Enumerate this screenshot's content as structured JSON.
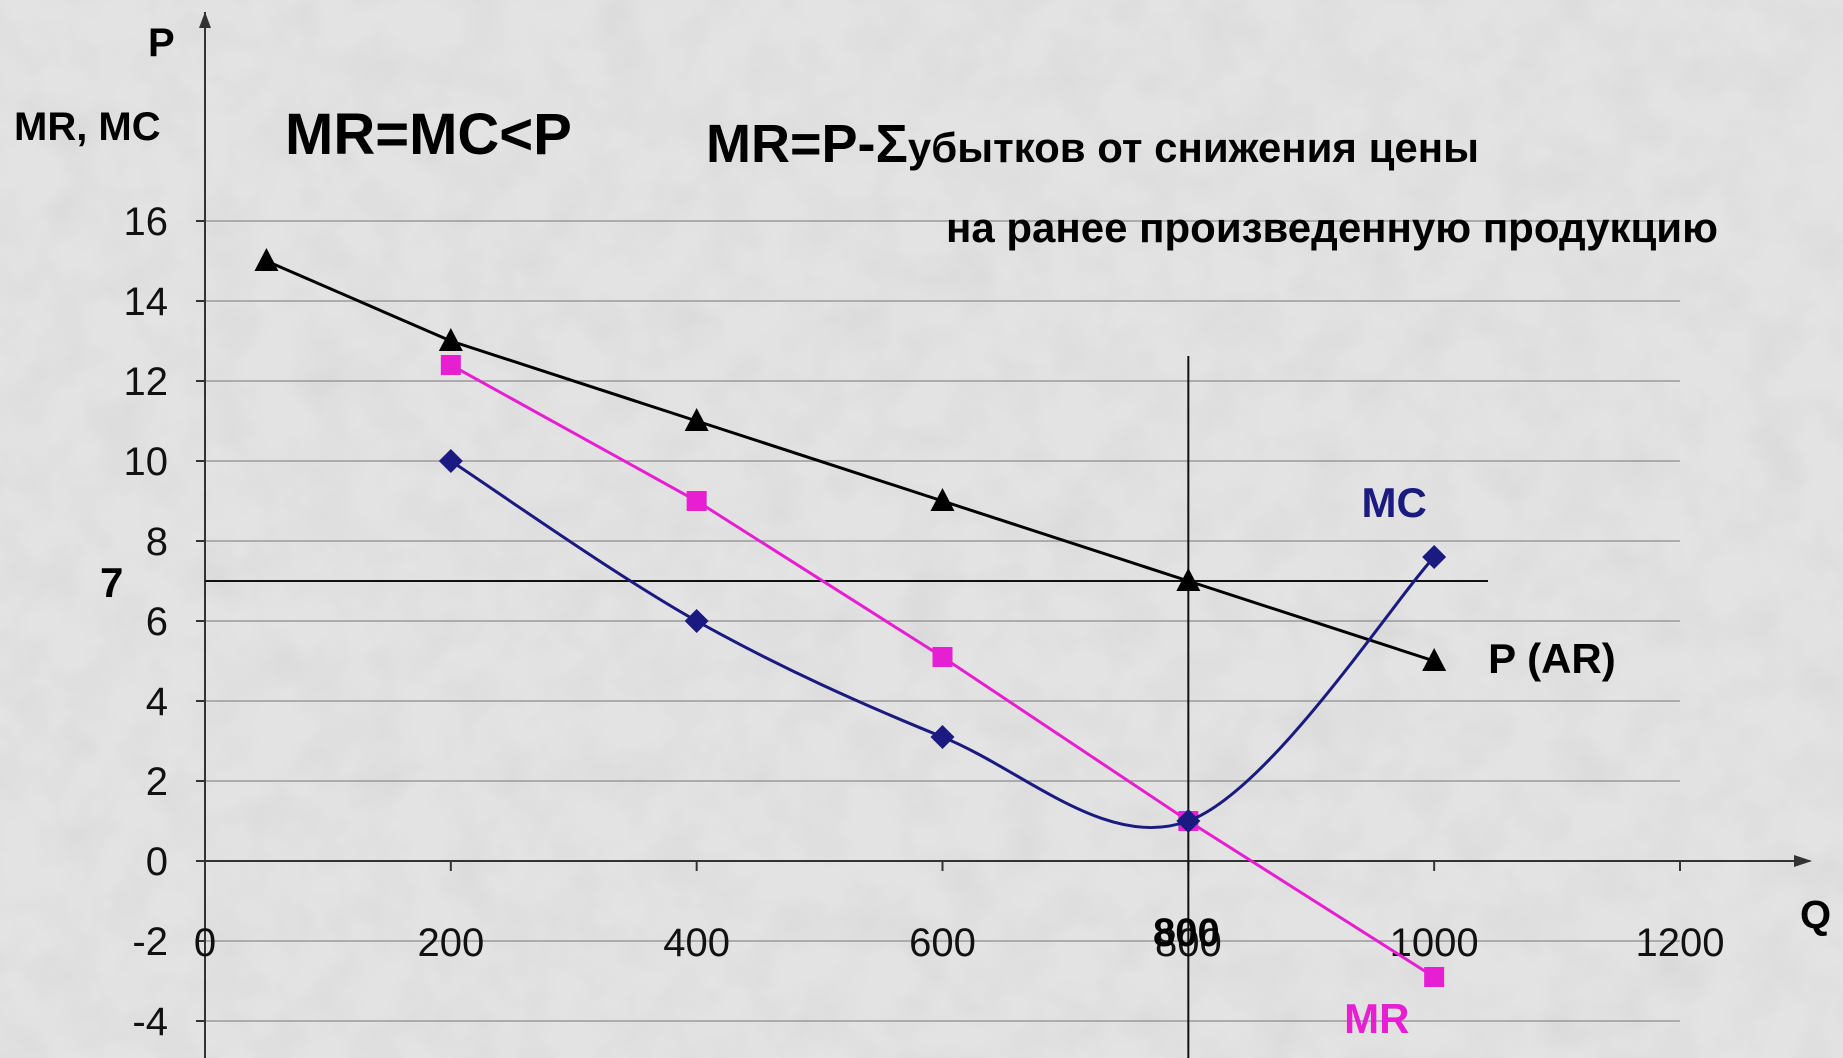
{
  "chart_data": {
    "type": "line",
    "ylabel_top": "P",
    "ylabel": "MR, MC",
    "xlabel": "Q",
    "xlim": [
      0,
      1200
    ],
    "ylim": [
      -4,
      16
    ],
    "x_ticks": [
      "0",
      "200",
      "400",
      "600",
      "800",
      "1000",
      "1200"
    ],
    "y_ticks": [
      "-4",
      "-2",
      "0",
      "2",
      "4",
      "6",
      "8",
      "10",
      "12",
      "14",
      "16"
    ],
    "grid": true,
    "series": [
      {
        "name": "P (AR)",
        "color": "#000000",
        "marker": "triangle",
        "x": [
          50,
          200,
          400,
          600,
          800,
          1000
        ],
        "y": [
          15,
          13,
          11,
          9,
          7,
          5
        ]
      },
      {
        "name": "MR",
        "color": "#e61fd2",
        "marker": "square",
        "x": [
          200,
          400,
          600,
          800,
          1000
        ],
        "y": [
          12.4,
          9,
          5.1,
          1,
          -2.9
        ]
      },
      {
        "name": "MC",
        "color": "#1a1a80",
        "marker": "diamond",
        "x": [
          200,
          400,
          600,
          800,
          1000
        ],
        "y": [
          10,
          6,
          3.1,
          1,
          7.6
        ]
      }
    ],
    "reference_lines": {
      "horizontal": {
        "y": 7,
        "label": "7"
      },
      "vertical": {
        "x": 800,
        "label": "800"
      }
    },
    "annotations": {
      "condition": "MR=MC<P",
      "formula_main": "MR=P-Σ",
      "formula_sub": "убытков от снижения цены",
      "formula_line2": "на ранее произведенную продукцию"
    }
  }
}
